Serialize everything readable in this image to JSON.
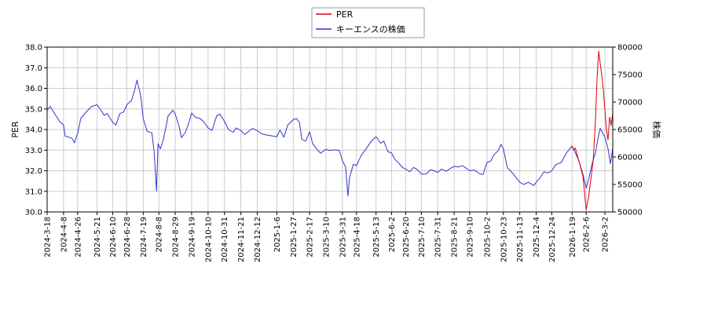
{
  "chart_data": {
    "type": "line",
    "title": "",
    "ylabel_left": "PER",
    "ylabel_right": "株価",
    "grid": true,
    "legend_placement": "top-center",
    "legend": [
      {
        "name": "PER",
        "color": "#dd0000"
      },
      {
        "name": "キーエンスの株価",
        "color": "#3333cc"
      }
    ],
    "x_range": [
      "2024-03-18",
      "2026-03-12"
    ],
    "ylim_left": [
      30.0,
      38.0
    ],
    "ylim_right": [
      50000,
      80000
    ],
    "x_ticks": [
      "2024-3-18",
      "2024-4-8",
      "2024-4-26",
      "2024-5-21",
      "2024-6-10",
      "2024-6-28",
      "2024-7-19",
      "2024-8-8",
      "2024-8-29",
      "2024-9-19",
      "2024-10-10",
      "2024-10-31",
      "2024-11-21",
      "2024-12-12",
      "2025-1-6",
      "2025-1-27",
      "2025-2-17",
      "2025-3-10",
      "2025-3-31",
      "2025-4-18",
      "2025-5-13",
      "2025-6-2",
      "2025-6-20",
      "2025-7-10",
      "2025-7-31",
      "2025-8-21",
      "2025-9-10",
      "2025-10-2",
      "2025-10-23",
      "2025-11-13",
      "2025-12-4",
      "2025-12-24",
      "2026-1-19",
      "2026-2-6",
      "2026-3-2"
    ],
    "y_ticks_left": [
      "30.0",
      "31.0",
      "32.0",
      "33.0",
      "34.0",
      "35.0",
      "36.0",
      "37.0",
      "38.0"
    ],
    "y_ticks_right": [
      "50000",
      "55000",
      "60000",
      "65000",
      "70000",
      "75000",
      "80000"
    ],
    "series": [
      {
        "name": "キーエンスの株価",
        "axis": "right",
        "color": "#3333cc",
        "points": [
          [
            "2024-03-18",
            68500
          ],
          [
            "2024-03-22",
            69200
          ],
          [
            "2024-03-28",
            67800
          ],
          [
            "2024-04-03",
            66500
          ],
          [
            "2024-04-08",
            65800
          ],
          [
            "2024-04-10",
            63800
          ],
          [
            "2024-04-15",
            63600
          ],
          [
            "2024-04-19",
            63400
          ],
          [
            "2024-04-22",
            62600
          ],
          [
            "2024-04-26",
            64300
          ],
          [
            "2024-04-30",
            67000
          ],
          [
            "2024-05-07",
            68200
          ],
          [
            "2024-05-14",
            69200
          ],
          [
            "2024-05-21",
            69500
          ],
          [
            "2024-05-25",
            68700
          ],
          [
            "2024-05-30",
            67600
          ],
          [
            "2024-06-03",
            67900
          ],
          [
            "2024-06-10",
            66300
          ],
          [
            "2024-06-14",
            65800
          ],
          [
            "2024-06-19",
            67900
          ],
          [
            "2024-06-24",
            68200
          ],
          [
            "2024-06-28",
            69500
          ],
          [
            "2024-07-04",
            70300
          ],
          [
            "2024-07-08",
            72200
          ],
          [
            "2024-07-11",
            74000
          ],
          [
            "2024-07-16",
            71000
          ],
          [
            "2024-07-19",
            67000
          ],
          [
            "2024-07-24",
            64700
          ],
          [
            "2024-07-30",
            64400
          ],
          [
            "2024-08-02",
            61000
          ],
          [
            "2024-08-05",
            53800
          ],
          [
            "2024-08-07",
            62400
          ],
          [
            "2024-08-10",
            61500
          ],
          [
            "2024-08-14",
            63300
          ],
          [
            "2024-08-20",
            67500
          ],
          [
            "2024-08-26",
            68500
          ],
          [
            "2024-08-29",
            67800
          ],
          [
            "2024-09-03",
            65500
          ],
          [
            "2024-09-06",
            63500
          ],
          [
            "2024-09-11",
            64500
          ],
          [
            "2024-09-16",
            66500
          ],
          [
            "2024-09-19",
            68000
          ],
          [
            "2024-09-24",
            67200
          ],
          [
            "2024-09-30",
            67000
          ],
          [
            "2024-10-05",
            66300
          ],
          [
            "2024-10-10",
            65300
          ],
          [
            "2024-10-15",
            64800
          ],
          [
            "2024-10-21",
            67500
          ],
          [
            "2024-10-25",
            67800
          ],
          [
            "2024-10-31",
            66500
          ],
          [
            "2024-11-05",
            65000
          ],
          [
            "2024-11-11",
            64500
          ],
          [
            "2024-11-15",
            65300
          ],
          [
            "2024-11-21",
            64800
          ],
          [
            "2024-11-26",
            64100
          ],
          [
            "2024-12-02",
            64800
          ],
          [
            "2024-12-06",
            65200
          ],
          [
            "2024-12-12",
            64800
          ],
          [
            "2024-12-18",
            64200
          ],
          [
            "2024-12-24",
            64000
          ],
          [
            "2025-01-06",
            63700
          ],
          [
            "2025-01-10",
            64900
          ],
          [
            "2025-01-15",
            63600
          ],
          [
            "2025-01-20",
            65800
          ],
          [
            "2025-01-27",
            66800
          ],
          [
            "2025-01-31",
            67000
          ],
          [
            "2025-02-04",
            66300
          ],
          [
            "2025-02-07",
            63200
          ],
          [
            "2025-02-12",
            62900
          ],
          [
            "2025-02-17",
            64600
          ],
          [
            "2025-02-21",
            62400
          ],
          [
            "2025-02-27",
            61300
          ],
          [
            "2025-03-03",
            60700
          ],
          [
            "2025-03-10",
            61400
          ],
          [
            "2025-03-14",
            61200
          ],
          [
            "2025-03-21",
            61300
          ],
          [
            "2025-03-27",
            61200
          ],
          [
            "2025-03-31",
            59300
          ],
          [
            "2025-04-04",
            58200
          ],
          [
            "2025-04-07",
            52900
          ],
          [
            "2025-04-09",
            56200
          ],
          [
            "2025-04-14",
            58700
          ],
          [
            "2025-04-18",
            58400
          ],
          [
            "2025-04-24",
            60300
          ],
          [
            "2025-04-30",
            61400
          ],
          [
            "2025-05-07",
            62900
          ],
          [
            "2025-05-13",
            63700
          ],
          [
            "2025-05-19",
            62500
          ],
          [
            "2025-05-23",
            62900
          ],
          [
            "2025-05-28",
            61000
          ],
          [
            "2025-06-02",
            60700
          ],
          [
            "2025-06-06",
            59600
          ],
          [
            "2025-06-11",
            58900
          ],
          [
            "2025-06-16",
            58100
          ],
          [
            "2025-06-20",
            57800
          ],
          [
            "2025-06-25",
            57300
          ],
          [
            "2025-06-30",
            58100
          ],
          [
            "2025-07-04",
            57800
          ],
          [
            "2025-07-10",
            56900
          ],
          [
            "2025-07-16",
            56900
          ],
          [
            "2025-07-22",
            57700
          ],
          [
            "2025-07-26",
            57500
          ],
          [
            "2025-07-31",
            57200
          ],
          [
            "2025-08-05",
            57800
          ],
          [
            "2025-08-11",
            57400
          ],
          [
            "2025-08-16",
            57900
          ],
          [
            "2025-08-21",
            58300
          ],
          [
            "2025-08-26",
            58200
          ],
          [
            "2025-09-01",
            58400
          ],
          [
            "2025-09-05",
            58000
          ],
          [
            "2025-09-10",
            57500
          ],
          [
            "2025-09-16",
            57600
          ],
          [
            "2025-09-22",
            57000
          ],
          [
            "2025-09-27",
            56800
          ],
          [
            "2025-10-02",
            59000
          ],
          [
            "2025-10-07",
            59300
          ],
          [
            "2025-10-11",
            60400
          ],
          [
            "2025-10-16",
            61100
          ],
          [
            "2025-10-20",
            62300
          ],
          [
            "2025-10-23",
            61500
          ],
          [
            "2025-10-28",
            58100
          ],
          [
            "2025-11-03",
            57200
          ],
          [
            "2025-11-08",
            56300
          ],
          [
            "2025-11-13",
            55400
          ],
          [
            "2025-11-18",
            55000
          ],
          [
            "2025-11-24",
            55400
          ],
          [
            "2025-12-01",
            54800
          ],
          [
            "2025-12-04",
            55400
          ],
          [
            "2025-12-09",
            56200
          ],
          [
            "2025-12-14",
            57300
          ],
          [
            "2025-12-19",
            57100
          ],
          [
            "2025-12-24",
            57500
          ],
          [
            "2025-12-29",
            58600
          ],
          [
            "2026-01-05",
            59000
          ],
          [
            "2026-01-12",
            60800
          ],
          [
            "2026-01-19",
            62000
          ],
          [
            "2026-01-23",
            60800
          ],
          [
            "2026-01-28",
            59200
          ],
          [
            "2026-02-02",
            56800
          ],
          [
            "2026-02-06",
            54300
          ],
          [
            "2026-02-10",
            56500
          ],
          [
            "2026-02-14",
            59000
          ],
          [
            "2026-02-18",
            60800
          ],
          [
            "2026-02-21",
            63300
          ],
          [
            "2026-02-24",
            65200
          ],
          [
            "2026-02-27",
            64400
          ],
          [
            "2026-03-02",
            63600
          ],
          [
            "2026-03-06",
            61500
          ],
          [
            "2026-03-09",
            58800
          ],
          [
            "2026-03-12",
            61500
          ]
        ]
      },
      {
        "name": "PER",
        "axis": "left",
        "color": "#dd0000",
        "points": [
          [
            "2026-01-19",
            33.2
          ],
          [
            "2026-01-21",
            33.0
          ],
          [
            "2026-01-23",
            33.1
          ],
          [
            "2026-01-26",
            32.7
          ],
          [
            "2026-01-29",
            32.3
          ],
          [
            "2026-02-02",
            31.7
          ],
          [
            "2026-02-04",
            30.9
          ],
          [
            "2026-02-06",
            30.1
          ],
          [
            "2026-02-09",
            30.7
          ],
          [
            "2026-02-12",
            31.6
          ],
          [
            "2026-02-15",
            32.5
          ],
          [
            "2026-02-18",
            34.5
          ],
          [
            "2026-02-20",
            36.5
          ],
          [
            "2026-02-22",
            37.8
          ],
          [
            "2026-02-24",
            37.2
          ],
          [
            "2026-02-26",
            36.6
          ],
          [
            "2026-02-28",
            35.9
          ],
          [
            "2026-03-02",
            34.9
          ],
          [
            "2026-03-04",
            34.0
          ],
          [
            "2026-03-06",
            33.5
          ],
          [
            "2026-03-08",
            34.6
          ],
          [
            "2026-03-10",
            34.2
          ],
          [
            "2026-03-12",
            34.8
          ]
        ]
      }
    ]
  }
}
